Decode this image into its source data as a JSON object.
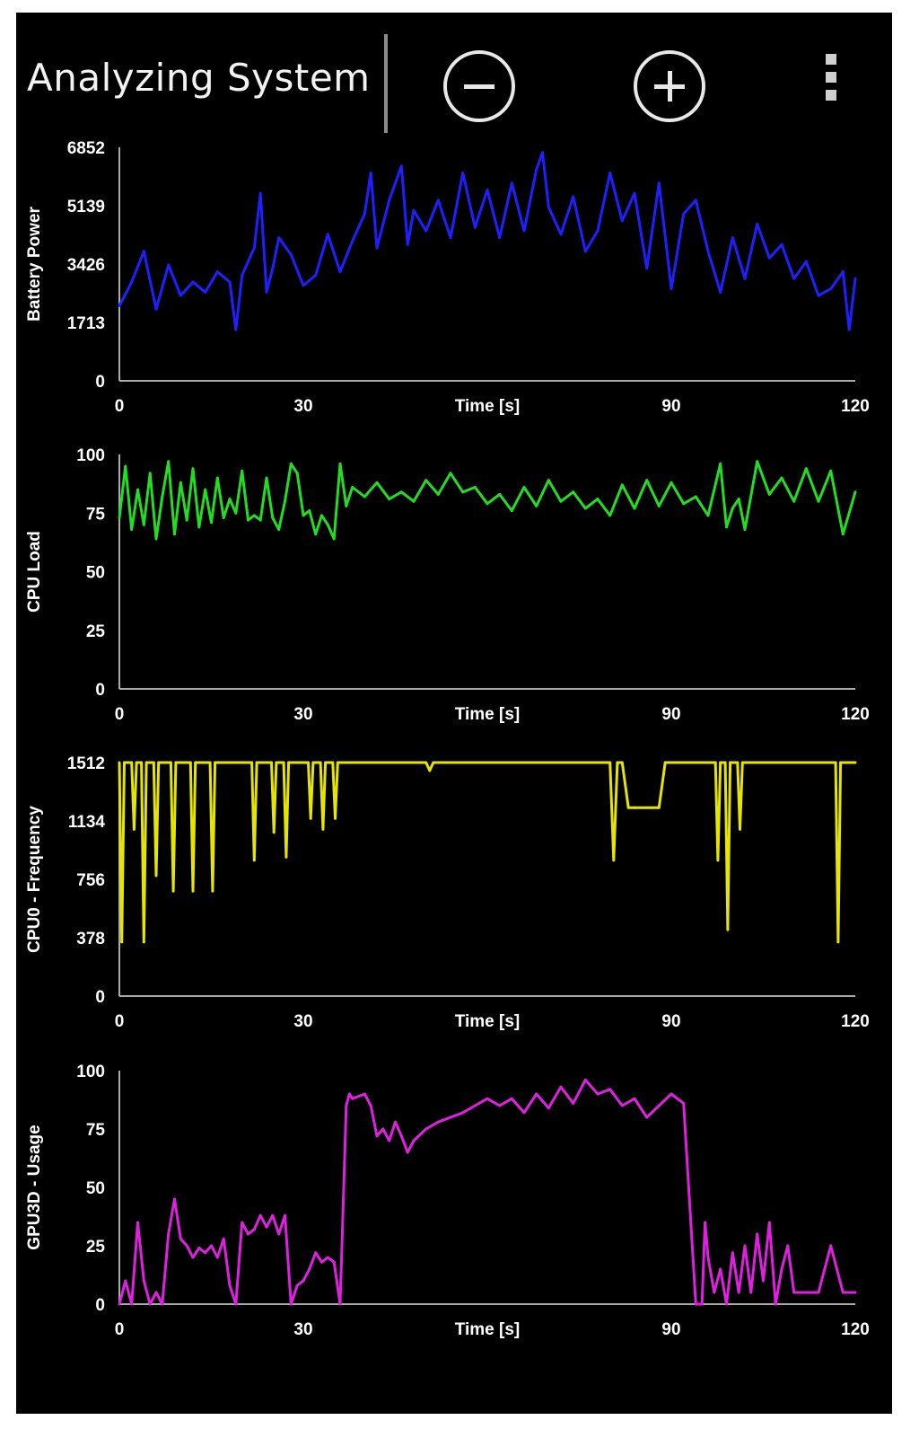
{
  "header": {
    "title": "Analyzing System",
    "zoom_out_icon": "minus-circle-icon",
    "zoom_in_icon": "plus-circle-icon",
    "menu_icon": "overflow-menu-icon"
  },
  "chart_data": [
    {
      "type": "line",
      "ylabel": "Battery Power",
      "xlabel": "Time [s]",
      "color": "#1f1fff",
      "xlim": [
        0,
        120
      ],
      "ylim": [
        0,
        6852
      ],
      "yticks": [
        "0",
        "1713",
        "3426",
        "5139",
        "6852"
      ],
      "xticks": [
        "0",
        "30",
        "Time [s]",
        "90",
        "120"
      ],
      "x": [
        0,
        2,
        4,
        6,
        8,
        10,
        12,
        14,
        16,
        18,
        19,
        20,
        22,
        23,
        24,
        25,
        26,
        28,
        30,
        32,
        34,
        36,
        38,
        40,
        41,
        42,
        44,
        46,
        47,
        48,
        50,
        52,
        54,
        56,
        58,
        60,
        62,
        64,
        66,
        68,
        69,
        70,
        72,
        74,
        76,
        78,
        80,
        82,
        84,
        86,
        88,
        90,
        92,
        94,
        96,
        98,
        100,
        102,
        104,
        106,
        108,
        110,
        112,
        114,
        116,
        118,
        119,
        120
      ],
      "values": [
        2200,
        2900,
        3800,
        2100,
        3400,
        2500,
        2900,
        2600,
        3200,
        2900,
        1500,
        3100,
        3900,
        5500,
        2600,
        3300,
        4200,
        3700,
        2800,
        3100,
        4300,
        3200,
        4100,
        4900,
        6100,
        3900,
        5300,
        6300,
        4000,
        5000,
        4400,
        5300,
        4200,
        6100,
        4500,
        5600,
        4200,
        5800,
        4400,
        6200,
        6700,
        5100,
        4300,
        5400,
        3800,
        4400,
        6100,
        4700,
        5500,
        3300,
        5800,
        2700,
        4900,
        5300,
        3800,
        2600,
        4200,
        3000,
        4600,
        3600,
        4000,
        3000,
        3500,
        2500,
        2700,
        3200,
        1500,
        3000
      ]
    },
    {
      "type": "line",
      "ylabel": "CPU Load",
      "xlabel": "Time [s]",
      "color": "#22dd22",
      "xlim": [
        0,
        120
      ],
      "ylim": [
        0,
        100
      ],
      "yticks": [
        "0",
        "25",
        "50",
        "75",
        "100"
      ],
      "xticks": [
        "0",
        "30",
        "Time [s]",
        "90",
        "120"
      ],
      "x": [
        0,
        1,
        2,
        3,
        4,
        5,
        6,
        7,
        8,
        9,
        10,
        11,
        12,
        13,
        14,
        15,
        16,
        17,
        18,
        19,
        20,
        21,
        22,
        23,
        24,
        25,
        26,
        27,
        28,
        29,
        30,
        31,
        32,
        33,
        34,
        35,
        36,
        37,
        38,
        40,
        42,
        44,
        46,
        48,
        50,
        52,
        54,
        56,
        58,
        60,
        62,
        64,
        66,
        68,
        70,
        72,
        74,
        76,
        78,
        80,
        82,
        84,
        86,
        88,
        90,
        92,
        94,
        96,
        98,
        99,
        100,
        101,
        102,
        104,
        106,
        108,
        110,
        112,
        114,
        116,
        118,
        120
      ],
      "values": [
        73,
        95,
        68,
        85,
        70,
        92,
        64,
        82,
        97,
        66,
        88,
        72,
        94,
        69,
        85,
        71,
        90,
        73,
        81,
        75,
        93,
        72,
        74,
        72,
        90,
        73,
        68,
        80,
        96,
        92,
        74,
        76,
        66,
        74,
        70,
        64,
        96,
        78,
        86,
        82,
        88,
        81,
        84,
        80,
        89,
        83,
        92,
        84,
        86,
        79,
        83,
        76,
        86,
        78,
        89,
        80,
        84,
        77,
        81,
        74,
        87,
        77,
        89,
        78,
        88,
        79,
        82,
        74,
        96,
        69,
        77,
        81,
        68,
        97,
        83,
        90,
        80,
        94,
        80,
        93,
        66,
        84
      ]
    },
    {
      "type": "line",
      "ylabel": "CPU0 - Frequency",
      "xlabel": "Time [s]",
      "color": "#e5e500",
      "xlim": [
        0,
        120
      ],
      "ylim": [
        0,
        1512
      ],
      "yticks": [
        "0",
        "378",
        "756",
        "1134",
        "1512"
      ],
      "xticks": [
        "0",
        "30",
        "Time [s]",
        "90",
        "120"
      ],
      "x": [
        0,
        0.4,
        0.8,
        2,
        2.4,
        2.8,
        3.6,
        4,
        4.4,
        5.6,
        6,
        6.4,
        8.4,
        8.8,
        9.2,
        11.6,
        12,
        12.4,
        14.8,
        15.2,
        15.6,
        21.6,
        22,
        22.4,
        24.8,
        25.2,
        25.6,
        26.8,
        27.2,
        27.6,
        30.8,
        31.2,
        31.6,
        32.8,
        33.2,
        33.6,
        34.8,
        35.2,
        35.6,
        50,
        50.6,
        51.2,
        80,
        80.6,
        81.2,
        82,
        83,
        84,
        88,
        89,
        90,
        97.2,
        97.6,
        98,
        98.8,
        99.2,
        99.6,
        100.8,
        101.2,
        101.6,
        116.8,
        117.2,
        117.6,
        120
      ],
      "values": [
        1512,
        350,
        1512,
        1512,
        1080,
        1512,
        1512,
        350,
        1512,
        1512,
        780,
        1512,
        1512,
        680,
        1512,
        1512,
        680,
        1512,
        1512,
        680,
        1512,
        1512,
        880,
        1512,
        1512,
        1060,
        1512,
        1512,
        900,
        1512,
        1512,
        1150,
        1512,
        1512,
        1080,
        1512,
        1512,
        1150,
        1512,
        1512,
        1460,
        1512,
        1512,
        880,
        1512,
        1512,
        1220,
        1220,
        1220,
        1512,
        1512,
        1512,
        880,
        1512,
        1512,
        430,
        1512,
        1512,
        1080,
        1512,
        1512,
        350,
        1512,
        1512
      ]
    },
    {
      "type": "line",
      "ylabel": "GPU3D - Usage",
      "xlabel": "Time [s]",
      "color": "#e020e0",
      "xlim": [
        0,
        120
      ],
      "ylim": [
        0,
        100
      ],
      "yticks": [
        "0",
        "25",
        "50",
        "75",
        "100"
      ],
      "xticks": [
        "0",
        "30",
        "Time [s]",
        "90",
        "120"
      ],
      "x": [
        0,
        1,
        2,
        3,
        4,
        5,
        6,
        7,
        8,
        9,
        10,
        11,
        12,
        13,
        14,
        15,
        16,
        17,
        18,
        19,
        20,
        21,
        22,
        23,
        24,
        25,
        26,
        27,
        28,
        29,
        30,
        31,
        32,
        33,
        34,
        35,
        36,
        37,
        37.5,
        38,
        39,
        40,
        41,
        42,
        43,
        44,
        45,
        46,
        47,
        48,
        50,
        52,
        54,
        56,
        58,
        60,
        62,
        64,
        66,
        68,
        70,
        72,
        74,
        76,
        78,
        80,
        82,
        84,
        86,
        88,
        90,
        92,
        94,
        95,
        95.5,
        96,
        97,
        98,
        99,
        100,
        101,
        102,
        103,
        104,
        105,
        106,
        107,
        108,
        109,
        110,
        111,
        112,
        114,
        116,
        118,
        119,
        120
      ],
      "values": [
        0,
        10,
        0,
        35,
        10,
        0,
        5,
        0,
        30,
        45,
        28,
        25,
        20,
        24,
        22,
        25,
        20,
        28,
        8,
        0,
        35,
        30,
        32,
        38,
        33,
        38,
        30,
        38,
        0,
        8,
        10,
        15,
        22,
        18,
        20,
        18,
        0,
        85,
        90,
        88,
        89,
        90,
        85,
        72,
        75,
        70,
        78,
        72,
        65,
        70,
        75,
        78,
        80,
        82,
        85,
        88,
        85,
        88,
        82,
        90,
        84,
        93,
        86,
        96,
        90,
        92,
        85,
        88,
        80,
        85,
        90,
        86,
        0,
        0,
        35,
        20,
        5,
        15,
        0,
        22,
        5,
        25,
        5,
        30,
        10,
        35,
        0,
        15,
        25,
        5,
        5,
        5,
        5,
        25,
        5,
        5,
        5
      ]
    }
  ]
}
